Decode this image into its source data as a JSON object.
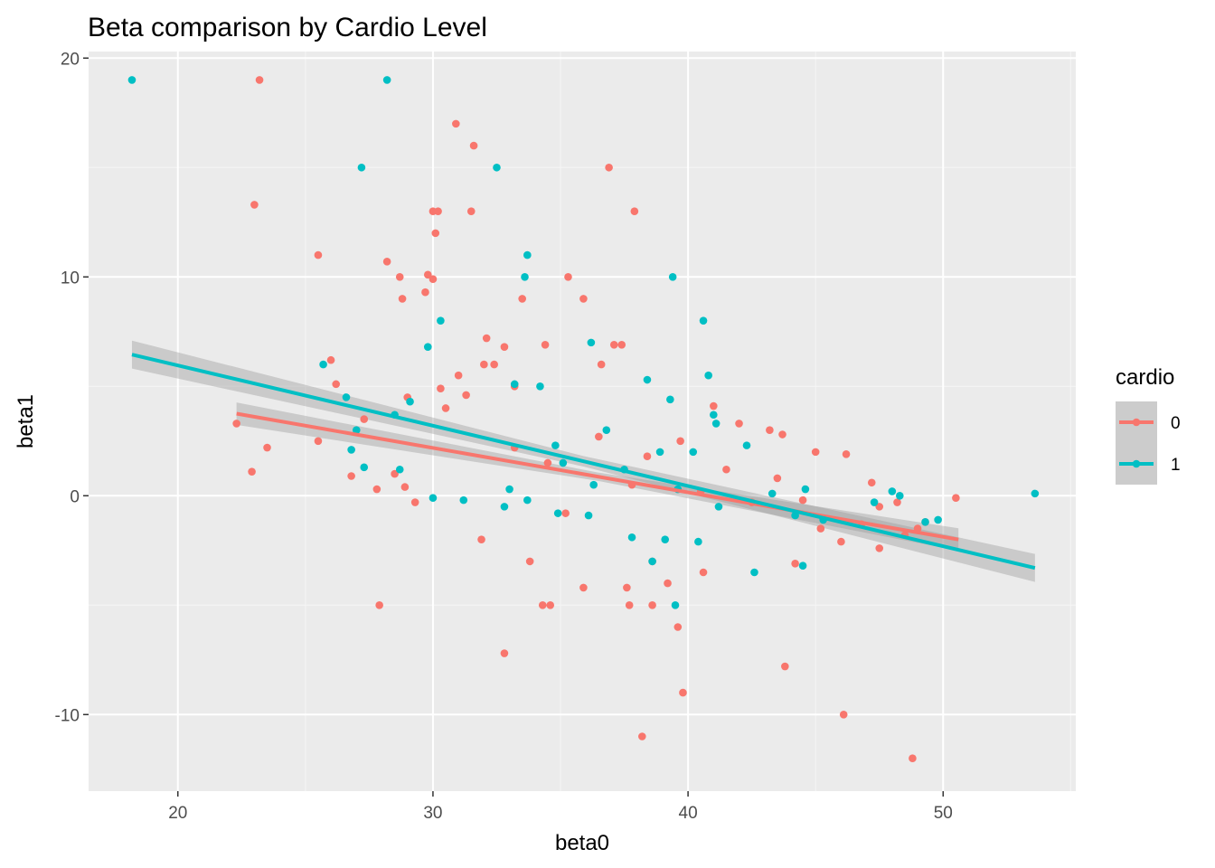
{
  "chart_data": {
    "type": "scatter",
    "title": "Beta comparison by Cardio Level",
    "xlabel": "beta0",
    "ylabel": "beta1",
    "xlim": [
      16.5,
      55.2
    ],
    "ylim": [
      -13.5,
      20.3
    ],
    "x_ticks": [
      20,
      30,
      40,
      50
    ],
    "y_ticks": [
      -10,
      0,
      10,
      20
    ],
    "x_tick_labels": [
      "20",
      "30",
      "40",
      "50"
    ],
    "y_tick_labels": [
      "-10",
      "0",
      "10",
      "20"
    ],
    "grid": true,
    "legend": {
      "title": "cardio",
      "position": "right"
    },
    "series": [
      {
        "name": "0",
        "color": "#F8766D",
        "points": [
          [
            23.2,
            19.0
          ],
          [
            23.0,
            13.3
          ],
          [
            22.3,
            3.3
          ],
          [
            22.9,
            1.1
          ],
          [
            23.5,
            2.2
          ],
          [
            25.5,
            11.0
          ],
          [
            25.5,
            2.5
          ],
          [
            26.0,
            6.2
          ],
          [
            26.2,
            5.1
          ],
          [
            26.8,
            0.9
          ],
          [
            27.3,
            3.5
          ],
          [
            27.8,
            0.3
          ],
          [
            27.9,
            -5.0
          ],
          [
            28.2,
            10.7
          ],
          [
            28.7,
            10.0
          ],
          [
            28.8,
            9.0
          ],
          [
            29.0,
            4.5
          ],
          [
            28.5,
            1.0
          ],
          [
            28.9,
            0.4
          ],
          [
            29.3,
            -0.3
          ],
          [
            29.8,
            10.1
          ],
          [
            29.7,
            9.3
          ],
          [
            30.0,
            13.0
          ],
          [
            30.1,
            12.0
          ],
          [
            30.2,
            13.0
          ],
          [
            30.0,
            9.9
          ],
          [
            30.3,
            4.9
          ],
          [
            30.9,
            17.0
          ],
          [
            31.6,
            16.0
          ],
          [
            31.5,
            13.0
          ],
          [
            31.0,
            5.5
          ],
          [
            30.5,
            4.0
          ],
          [
            31.3,
            4.6
          ],
          [
            32.1,
            7.2
          ],
          [
            32.8,
            6.8
          ],
          [
            32.0,
            6.0
          ],
          [
            32.4,
            6.0
          ],
          [
            31.9,
            -2.0
          ],
          [
            32.8,
            -7.2
          ],
          [
            33.5,
            9.0
          ],
          [
            33.2,
            5.0
          ],
          [
            33.8,
            -3.0
          ],
          [
            34.4,
            6.9
          ],
          [
            34.3,
            -5.0
          ],
          [
            34.6,
            -5.0
          ],
          [
            35.3,
            10.0
          ],
          [
            35.9,
            9.0
          ],
          [
            35.9,
            -4.2
          ],
          [
            36.6,
            6.0
          ],
          [
            36.9,
            15.0
          ],
          [
            37.1,
            6.9
          ],
          [
            37.4,
            6.9
          ],
          [
            37.6,
            -4.2
          ],
          [
            37.9,
            13.0
          ],
          [
            37.7,
            -5.0
          ],
          [
            38.2,
            -11.0
          ],
          [
            38.6,
            -3.0
          ],
          [
            38.6,
            -5.0
          ],
          [
            39.2,
            -4.0
          ],
          [
            39.6,
            -6.0
          ],
          [
            39.8,
            -9.0
          ],
          [
            40.6,
            -3.5
          ],
          [
            41.0,
            4.1
          ],
          [
            42.0,
            3.3
          ],
          [
            43.2,
            3.0
          ],
          [
            43.7,
            2.8
          ],
          [
            43.8,
            -7.8
          ],
          [
            45.0,
            2.0
          ],
          [
            46.1,
            -10.0
          ],
          [
            48.8,
            -12.0
          ],
          [
            46.2,
            1.9
          ],
          [
            47.2,
            0.6
          ],
          [
            47.5,
            -0.5
          ],
          [
            48.2,
            -0.3
          ],
          [
            48.5,
            -1.8
          ],
          [
            49.0,
            -1.5
          ],
          [
            49.3,
            -1.2
          ],
          [
            50.5,
            -0.1
          ],
          [
            47.5,
            -2.4
          ],
          [
            44.2,
            -3.1
          ],
          [
            45.2,
            -1.5
          ],
          [
            46.0,
            -2.1
          ],
          [
            46.8,
            -1.3
          ],
          [
            33.2,
            2.2
          ],
          [
            34.5,
            1.5
          ],
          [
            36.5,
            2.7
          ],
          [
            37.8,
            0.5
          ],
          [
            35.2,
            -0.8
          ],
          [
            38.4,
            1.8
          ],
          [
            39.7,
            2.5
          ],
          [
            40.5,
            0.2
          ],
          [
            41.5,
            1.2
          ],
          [
            42.5,
            -0.3
          ],
          [
            43.5,
            0.8
          ],
          [
            44.5,
            -0.2
          ]
        ]
      },
      {
        "name": "1",
        "color": "#00BFC4",
        "points": [
          [
            18.2,
            19.0
          ],
          [
            28.2,
            19.0
          ],
          [
            27.2,
            15.0
          ],
          [
            32.5,
            15.0
          ],
          [
            33.7,
            11.0
          ],
          [
            33.6,
            10.0
          ],
          [
            39.4,
            10.0
          ],
          [
            30.3,
            8.0
          ],
          [
            40.6,
            8.0
          ],
          [
            36.2,
            7.0
          ],
          [
            29.8,
            6.8
          ],
          [
            25.7,
            6.0
          ],
          [
            40.8,
            5.5
          ],
          [
            38.4,
            5.3
          ],
          [
            33.2,
            5.1
          ],
          [
            34.2,
            5.0
          ],
          [
            39.3,
            4.4
          ],
          [
            26.6,
            4.5
          ],
          [
            29.1,
            4.3
          ],
          [
            28.5,
            3.7
          ],
          [
            41.0,
            3.7
          ],
          [
            41.1,
            3.3
          ],
          [
            27.0,
            3.0
          ],
          [
            36.8,
            3.0
          ],
          [
            26.8,
            2.1
          ],
          [
            34.8,
            2.3
          ],
          [
            38.9,
            2.0
          ],
          [
            40.2,
            2.0
          ],
          [
            42.3,
            2.3
          ],
          [
            27.3,
            1.3
          ],
          [
            28.7,
            1.2
          ],
          [
            30.0,
            -0.1
          ],
          [
            31.2,
            -0.2
          ],
          [
            32.8,
            -0.5
          ],
          [
            33.7,
            -0.2
          ],
          [
            34.9,
            -0.8
          ],
          [
            36.1,
            -0.9
          ],
          [
            37.8,
            -1.9
          ],
          [
            38.6,
            -3.0
          ],
          [
            39.5,
            -5.0
          ],
          [
            39.1,
            -2.0
          ],
          [
            40.4,
            -2.1
          ],
          [
            42.6,
            -3.5
          ],
          [
            44.5,
            -3.2
          ],
          [
            44.2,
            -0.9
          ],
          [
            45.3,
            -1.1
          ],
          [
            47.3,
            -0.3
          ],
          [
            48.0,
            0.2
          ],
          [
            48.3,
            0.0
          ],
          [
            49.3,
            -1.2
          ],
          [
            49.8,
            -1.1
          ],
          [
            53.6,
            0.1
          ],
          [
            36.3,
            0.5
          ],
          [
            37.5,
            1.2
          ],
          [
            39.6,
            0.3
          ],
          [
            41.2,
            -0.5
          ],
          [
            43.3,
            0.1
          ],
          [
            44.6,
            0.3
          ],
          [
            35.1,
            1.5
          ],
          [
            33.0,
            0.3
          ]
        ]
      }
    ],
    "fit_lines": [
      {
        "series": "0",
        "color": "#F8766D",
        "x": [
          22.3,
          50.6
        ],
        "y": [
          3.75,
          -2.0
        ],
        "ci": 0.32
      },
      {
        "series": "1",
        "color": "#00BFC4",
        "x": [
          18.2,
          53.6
        ],
        "y": [
          6.45,
          -3.3
        ],
        "ci": 0.4
      }
    ]
  }
}
